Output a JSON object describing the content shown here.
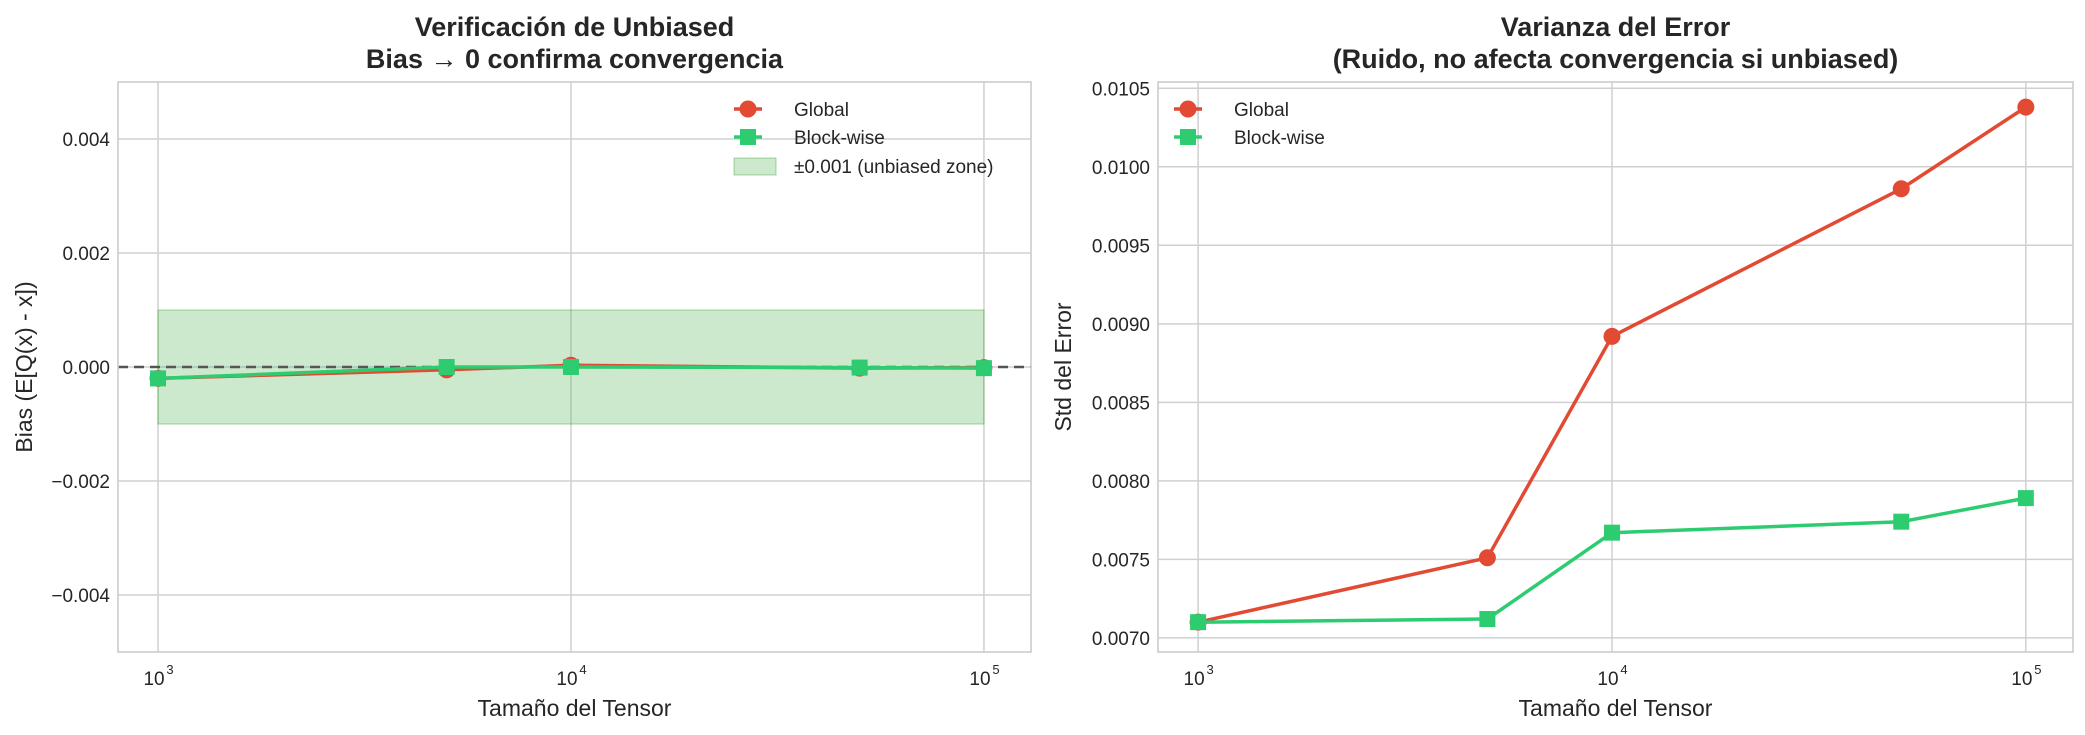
{
  "chart_data": [
    {
      "type": "line",
      "title_line1": "Verificación de Unbiased",
      "title_line2": "Bias → 0 confirma convergencia",
      "xlabel": "Tamaño del Tensor",
      "ylabel": "Bias (E[Q(x) - x])",
      "xscale": "log",
      "xlim": [
        800,
        130000
      ],
      "ylim": [
        -0.005,
        0.005
      ],
      "xticks": [
        {
          "value": 1000,
          "base": "10",
          "exp": "3"
        },
        {
          "value": 10000,
          "base": "10",
          "exp": "4"
        },
        {
          "value": 100000,
          "base": "10",
          "exp": "5"
        }
      ],
      "yticks": [
        {
          "value": -0.004,
          "label": "−0.004"
        },
        {
          "value": -0.002,
          "label": "−0.002"
        },
        {
          "value": 0.0,
          "label": "0.000"
        },
        {
          "value": 0.002,
          "label": "0.002"
        },
        {
          "value": 0.004,
          "label": "0.004"
        }
      ],
      "grid": true,
      "legend_position": "top-right",
      "reference_line": {
        "y": 0.0,
        "style": "dashed",
        "color": "#555555"
      },
      "band": {
        "x": [
          1000,
          100000
        ],
        "y": [
          -0.001,
          0.001
        ],
        "label": "±0.001 (unbiased zone)",
        "color": "#4daf4a"
      },
      "series": [
        {
          "name": "Global",
          "color": "#e24a33",
          "marker": "circle",
          "x": [
            1000,
            5000,
            10000,
            50000,
            100000
          ],
          "y": [
            -0.0002,
            -5e-05,
            3e-05,
            -2e-05,
            -1e-05
          ]
        },
        {
          "name": "Block-wise",
          "color": "#2ecc71",
          "marker": "square",
          "x": [
            1000,
            5000,
            10000,
            50000,
            100000
          ],
          "y": [
            -0.0002,
            0.0,
            0.0,
            -1e-05,
            -2e-05
          ]
        }
      ]
    },
    {
      "type": "line",
      "title_line1": "Varianza del Error",
      "title_line2": "(Ruido, no afecta convergencia si unbiased)",
      "xlabel": "Tamaño del Tensor",
      "ylabel": "Std del Error",
      "xscale": "log",
      "xlim": [
        800,
        130000
      ],
      "ylim": [
        0.00691,
        0.01054
      ],
      "xticks": [
        {
          "value": 1000,
          "base": "10",
          "exp": "3"
        },
        {
          "value": 10000,
          "base": "10",
          "exp": "4"
        },
        {
          "value": 100000,
          "base": "10",
          "exp": "5"
        }
      ],
      "yticks": [
        {
          "value": 0.007,
          "label": "0.0070"
        },
        {
          "value": 0.0075,
          "label": "0.0075"
        },
        {
          "value": 0.008,
          "label": "0.0080"
        },
        {
          "value": 0.0085,
          "label": "0.0085"
        },
        {
          "value": 0.009,
          "label": "0.0090"
        },
        {
          "value": 0.0095,
          "label": "0.0095"
        },
        {
          "value": 0.01,
          "label": "0.0100"
        },
        {
          "value": 0.0105,
          "label": "0.0105"
        }
      ],
      "grid": true,
      "legend_position": "top-left",
      "series": [
        {
          "name": "Global",
          "color": "#e24a33",
          "marker": "circle",
          "x": [
            1000,
            5000,
            10000,
            50000,
            100000
          ],
          "y": [
            0.0071,
            0.00751,
            0.00892,
            0.00986,
            0.01038
          ]
        },
        {
          "name": "Block-wise",
          "color": "#2ecc71",
          "marker": "square",
          "x": [
            1000,
            5000,
            10000,
            50000,
            100000
          ],
          "y": [
            0.0071,
            0.00712,
            0.00767,
            0.00774,
            0.00789
          ]
        }
      ]
    }
  ]
}
